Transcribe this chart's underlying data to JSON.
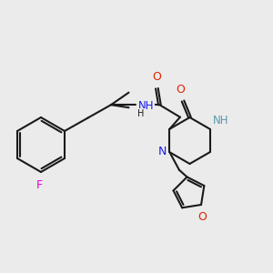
{
  "background_color": "#ebebeb",
  "bond_color": "#1a1a1a",
  "bond_width": 1.5,
  "atom_colors": {
    "F": "#e000e0",
    "O": "#dd2200",
    "N": "#1a1aee",
    "NH_pip": "#5599aa",
    "C": "#1a1a1a"
  },
  "figsize": [
    3.0,
    3.0
  ],
  "dpi": 100
}
